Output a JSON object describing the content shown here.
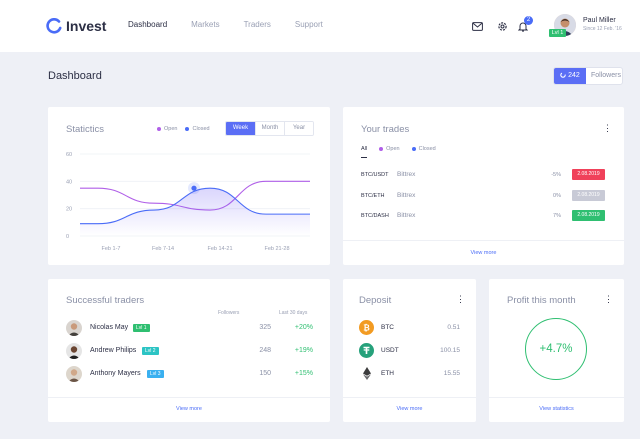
{
  "app": {
    "name": "Invest"
  },
  "nav": [
    "Dashboard",
    "Markets",
    "Traders",
    "Support"
  ],
  "header": {
    "notification_count": "2",
    "user_name": "Paul Miller",
    "user_since": "Since 12 Feb. '16",
    "user_level": "Lvl 1"
  },
  "page": {
    "title": "Dashboard",
    "followers_count": "242",
    "followers_label": "Followers"
  },
  "statistics": {
    "title": "Statictics",
    "legend": [
      "Open",
      "Closed"
    ],
    "ranges": [
      "Week",
      "Month",
      "Year"
    ],
    "active_range": "Week"
  },
  "chart_data": {
    "type": "line",
    "x": [
      "Feb 1-7",
      "Feb 7-14",
      "Feb 14-21",
      "Feb 21-28"
    ],
    "ylim": [
      0,
      60
    ],
    "yticks": [
      "60",
      "40",
      "20",
      "0"
    ],
    "grid": true,
    "legend_position": "top-right",
    "series": [
      {
        "name": "Open",
        "color": "#b05fe8",
        "values": [
          35,
          24,
          19,
          40
        ]
      },
      {
        "name": "Closed",
        "color": "#4a6cf7",
        "values": [
          9,
          19,
          35,
          16
        ]
      }
    ],
    "highlight": {
      "series": "Closed",
      "x": "Feb 14-21"
    }
  },
  "trades": {
    "title": "Your trades",
    "tabs": [
      "All",
      "Open",
      "Closed"
    ],
    "rows": [
      {
        "pair": "BTC/USDT",
        "exchange": "Bittrex",
        "pct": "-5%",
        "date": "2.08.2019",
        "color": "#f0415a"
      },
      {
        "pair": "BTC/ETH",
        "exchange": "Bittrex",
        "pct": "0%",
        "date": "2.08.2019",
        "color": "#c8cad6"
      },
      {
        "pair": "BTC/DASH",
        "exchange": "Bittrex",
        "pct": "7%",
        "date": "2.08.2019",
        "color": "#2fbf71"
      }
    ],
    "view_more": "View more"
  },
  "traders": {
    "title": "Successful traders",
    "col_followers": "Followers",
    "col_last": "Last 30 days",
    "rows": [
      {
        "name": "Nicolas May",
        "level": "Lvl 1",
        "level_color": "#2fbf71",
        "followers": "325",
        "change": "+20%"
      },
      {
        "name": "Andrew Philips",
        "level": "Lvl 2",
        "level_color": "#2cc4c4",
        "followers": "248",
        "change": "+19%"
      },
      {
        "name": "Anthony Mayers",
        "level": "Lvl 3",
        "level_color": "#3ab0f0",
        "followers": "150",
        "change": "+15%"
      }
    ],
    "view_more": "View more"
  },
  "deposit": {
    "title": "Deposit",
    "rows": [
      {
        "symbol": "BTC",
        "amount": "0.51",
        "icon": "bitcoin-icon"
      },
      {
        "symbol": "USDT",
        "amount": "100.15",
        "icon": "tether-icon"
      },
      {
        "symbol": "ETH",
        "amount": "15.55",
        "icon": "ethereum-icon"
      }
    ],
    "view_more": "View more"
  },
  "profit": {
    "title": "Profit this month",
    "value": "+4.7%",
    "view_statistics": "View statistics"
  }
}
